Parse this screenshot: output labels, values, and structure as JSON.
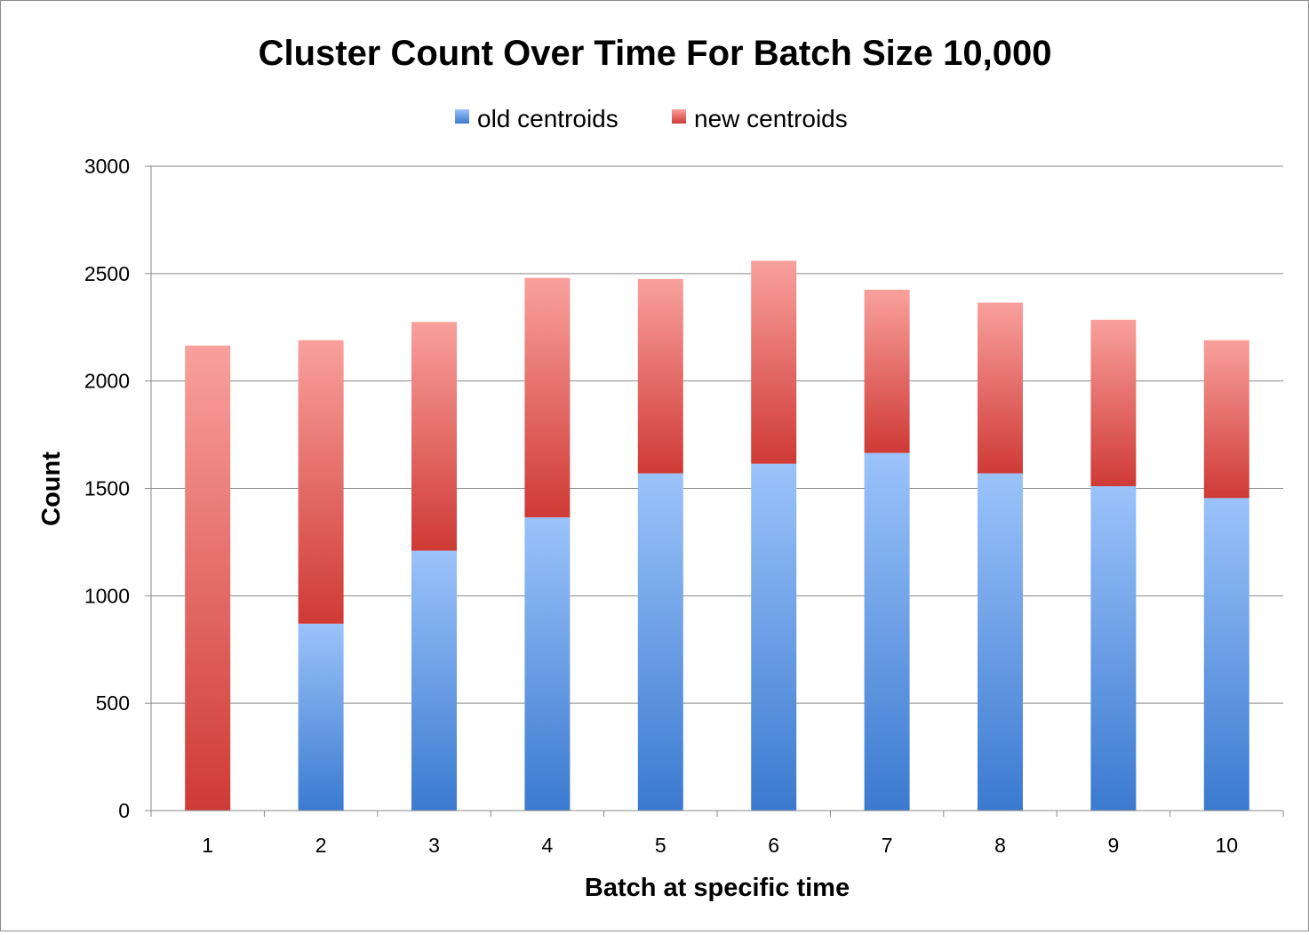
{
  "chart_data": {
    "type": "bar",
    "stacked": true,
    "title": "Cluster Count Over Time For Batch Size 10,000",
    "xlabel": "Batch at specific time",
    "ylabel": "Count",
    "ylim": [
      0,
      3000
    ],
    "yticks": [
      0,
      500,
      1000,
      1500,
      2000,
      2500,
      3000
    ],
    "grid": true,
    "legend_position": "top",
    "categories": [
      "1",
      "2",
      "3",
      "4",
      "5",
      "6",
      "7",
      "8",
      "9",
      "10"
    ],
    "series": [
      {
        "name": "old centroids",
        "color": "#4f8ee0",
        "values": [
          0,
          870,
          1210,
          1365,
          1570,
          1615,
          1665,
          1570,
          1510,
          1455
        ]
      },
      {
        "name": "new centroids",
        "color": "#e0504f",
        "values": [
          2165,
          1320,
          1065,
          1115,
          905,
          945,
          760,
          795,
          775,
          735
        ]
      }
    ]
  }
}
